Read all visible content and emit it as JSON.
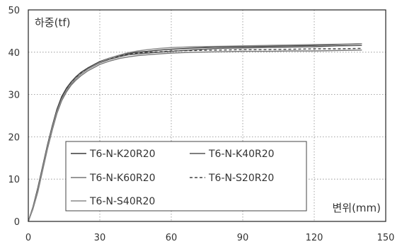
{
  "chart_data": {
    "type": "line",
    "xlabel": "변위(mm)",
    "ylabel": "하중(tf)",
    "xlim": [
      0,
      150
    ],
    "ylim": [
      0,
      50
    ],
    "xticks": [
      0,
      30,
      60,
      90,
      120,
      150
    ],
    "yticks": [
      0,
      10,
      20,
      30,
      40,
      50
    ],
    "grid": true,
    "legend_position": "lower-left",
    "series": [
      {
        "name": "T6-N-K20R20",
        "color": "#3a3a3a",
        "dash": "solid",
        "x": [
          0,
          2,
          4,
          6,
          8,
          10,
          12,
          14,
          16,
          18,
          20,
          22,
          25,
          28,
          30,
          34,
          38,
          42,
          46,
          50,
          55,
          60,
          70,
          80,
          90,
          100,
          110,
          120,
          130,
          140
        ],
        "y": [
          0,
          3.5,
          8,
          13,
          18,
          22.5,
          26.5,
          29.5,
          31.5,
          33,
          34.2,
          35.2,
          36.3,
          37.2,
          37.8,
          38.6,
          39.2,
          39.7,
          40,
          40.2,
          40.5,
          40.7,
          41,
          41.2,
          41.3,
          41.4,
          41.5,
          41.6,
          41.8,
          42
        ]
      },
      {
        "name": "T6-N-K40R20",
        "color": "#555555",
        "dash": "solid",
        "x": [
          0,
          2,
          4,
          6,
          8,
          10,
          12,
          14,
          16,
          18,
          20,
          22,
          25,
          28,
          30,
          34,
          38,
          42,
          46,
          50,
          55,
          60,
          70,
          80,
          90,
          100,
          110,
          120,
          130,
          140
        ],
        "y": [
          0,
          3.2,
          7.5,
          12.5,
          17.5,
          22,
          26,
          29,
          31,
          32.5,
          33.8,
          34.8,
          36,
          36.9,
          37.5,
          38.3,
          38.9,
          39.4,
          39.6,
          39.8,
          40,
          40.2,
          40.6,
          40.9,
          41,
          41.1,
          41.2,
          41.3,
          41.5,
          41.6
        ]
      },
      {
        "name": "T6-N-K60R20",
        "color": "#777777",
        "dash": "solid",
        "x": [
          0,
          2,
          4,
          6,
          8,
          10,
          12,
          14,
          16,
          18,
          20,
          22,
          25,
          28,
          30,
          34,
          38,
          42,
          46,
          50,
          55,
          60,
          70,
          80,
          90,
          100,
          110,
          120,
          130,
          140
        ],
        "y": [
          0,
          3,
          7,
          12,
          17,
          21.5,
          25.5,
          28.5,
          30.6,
          32.2,
          33.4,
          34.4,
          35.6,
          36.5,
          37.1,
          37.9,
          38.5,
          38.9,
          39.2,
          39.4,
          39.6,
          39.8,
          40,
          40.1,
          40.2,
          40.2,
          40.3,
          40.3,
          40.4,
          40.5
        ]
      },
      {
        "name": "T6-N-S20R20",
        "color": "#444444",
        "dash": "dashed",
        "x": [
          0,
          2,
          4,
          6,
          8,
          10,
          12,
          14,
          16,
          18,
          20,
          22,
          25,
          28,
          30,
          34,
          38,
          42,
          46,
          50,
          55,
          60,
          70,
          80,
          90,
          100,
          110,
          120,
          130,
          140
        ],
        "y": [
          0,
          3.4,
          7.8,
          12.8,
          17.8,
          22.3,
          26.2,
          29.2,
          31.3,
          32.8,
          34,
          35,
          36.2,
          37.1,
          37.7,
          38.5,
          39,
          39.5,
          39.8,
          40,
          40.1,
          40.3,
          40.4,
          40.5,
          40.6,
          40.6,
          40.7,
          40.8,
          40.8,
          40.9
        ]
      },
      {
        "name": "T6-N-S40R20",
        "color": "#8a8a8a",
        "dash": "solid",
        "x": [
          0,
          2,
          4,
          6,
          8,
          10,
          12,
          14,
          16,
          18,
          20,
          22,
          25,
          28,
          30,
          34,
          38,
          42,
          46,
          50,
          55,
          60,
          70,
          80,
          90,
          100,
          110,
          120,
          130,
          140
        ],
        "y": [
          0,
          3.3,
          7.6,
          12.6,
          17.6,
          22.1,
          26,
          28.9,
          31,
          32.6,
          33.8,
          34.8,
          36,
          37,
          37.6,
          38.6,
          39.3,
          39.9,
          40.3,
          40.6,
          40.9,
          41.1,
          41.3,
          41.4,
          41.5,
          41.6,
          41.7,
          41.8,
          41.9,
          42
        ]
      }
    ]
  }
}
